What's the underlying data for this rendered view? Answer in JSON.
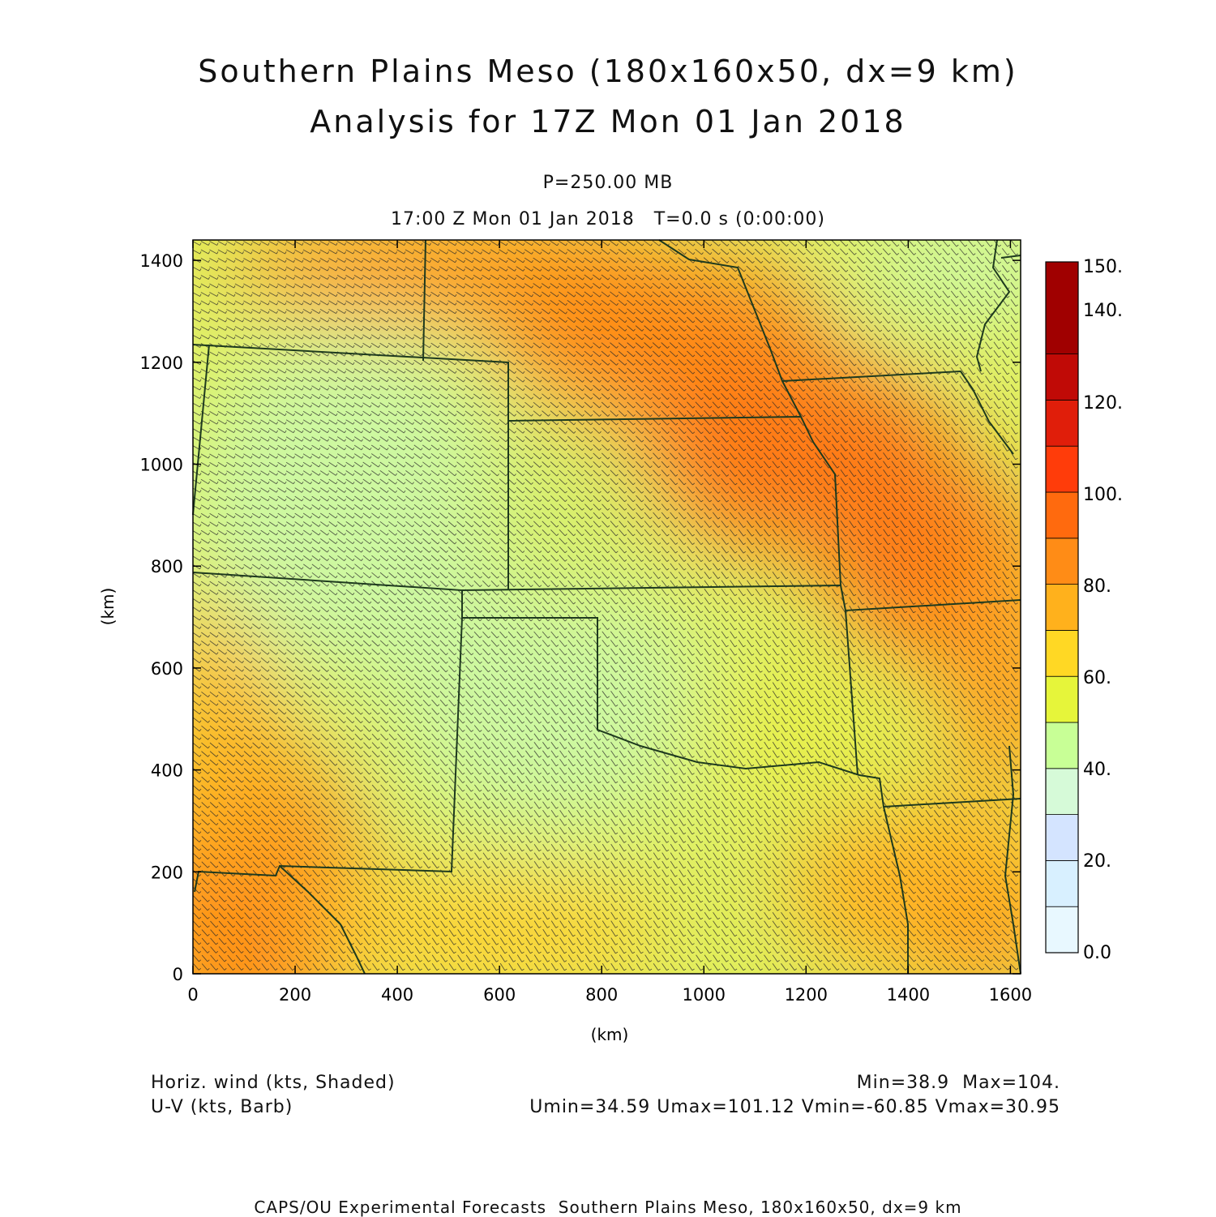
{
  "title_line1": "Southern Plains Meso (180x160x50, dx=9 km)",
  "title_line2": "Analysis for 17Z Mon 01 Jan 2018",
  "level": "P=250.00 MB",
  "time_line": "17:00 Z Mon 01 Jan 2018   T=0.0 s (0:00:00)",
  "x_label": "(km)",
  "y_label": "(km)",
  "x_ticks": [
    0,
    200,
    400,
    600,
    800,
    1000,
    1200,
    1400,
    1600
  ],
  "y_ticks": [
    0,
    200,
    400,
    600,
    800,
    1000,
    1200,
    1400
  ],
  "x_range": [
    0,
    1620
  ],
  "y_range": [
    0,
    1440
  ],
  "colorbar": {
    "labels": [
      "0.0",
      "20.",
      "40.",
      "60.",
      "80.",
      "100.",
      "120.",
      "140.",
      "150."
    ],
    "colors": [
      "#e8f8ff",
      "#d8f0ff",
      "#d4e4ff",
      "#d6fad8",
      "#c8ff96",
      "#e6f53a",
      "#ffd824",
      "#ffb11c",
      "#ff8c16",
      "#ff6a0e",
      "#ff3c0a",
      "#e01e0a",
      "#c00a06",
      "#a00000"
    ]
  },
  "field": {
    "variable": "Horiz. wind (kts, Shaded)",
    "vector": "U-V (kts, Barb)",
    "min_max": "Min=38.9  Max=104.",
    "uv_stats": "Umin=34.59 Umax=101.12 Vmin=-60.85 Vmax=30.95"
  },
  "credit": "CAPS/OU Experimental Forecasts  Southern Plains Meso, 180x160x50, dx=9 km",
  "colors": {
    "border": "#1e3a1e",
    "barb": "#2a2a2a",
    "axis": "#000000"
  }
}
